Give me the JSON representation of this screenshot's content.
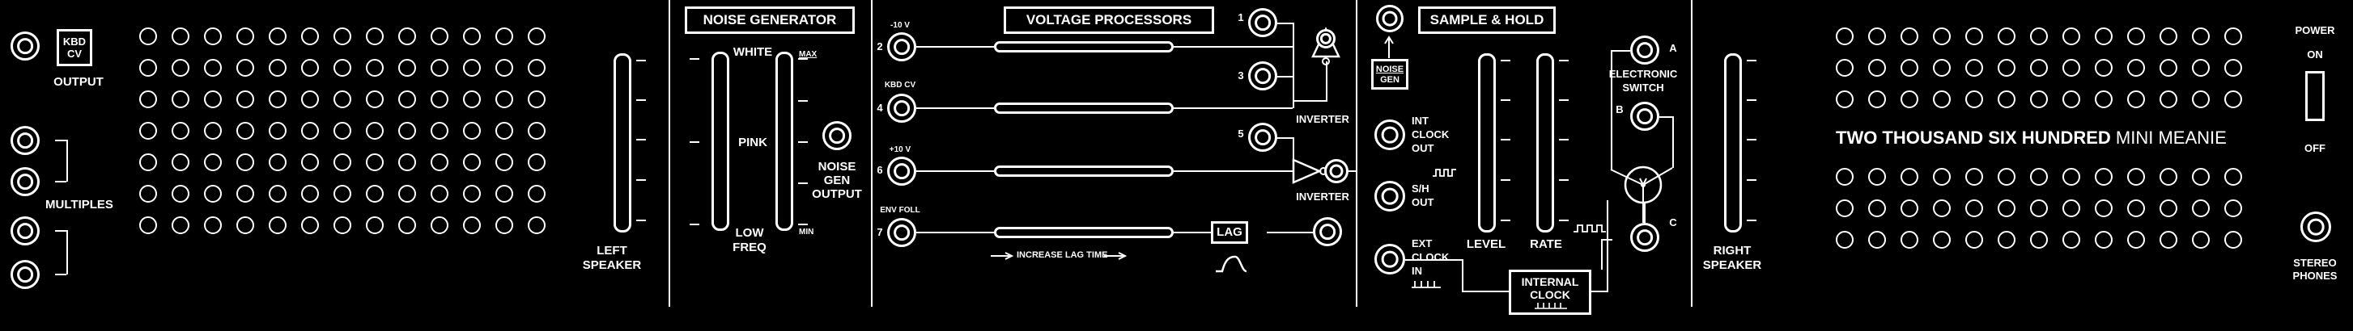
{
  "output": {
    "kbd_cv_box": "KBD CV",
    "label": "OUTPUT"
  },
  "multiples": {
    "label": "MULTIPLES"
  },
  "left_speaker": {
    "label_line1": "LEFT",
    "label_line2": "SPEAKER"
  },
  "noise_generator": {
    "title": "NOISE GENERATOR",
    "white": "WHITE",
    "pink": "PINK",
    "low": "LOW",
    "freq": "FREQ",
    "max": "MAX",
    "min": "MIN",
    "out_line1": "NOISE",
    "out_line2": "GEN",
    "out_line3": "OUTPUT"
  },
  "voltage_processors": {
    "title": "VOLTAGE PROCESSORS",
    "in2_top": "-10 V",
    "in2_num": "2",
    "in4_top": "KBD CV",
    "in4_num": "4",
    "in6_top": "+10 V",
    "in6_num": "6",
    "in7_top": "ENV FOLL",
    "in7_num": "7",
    "out1": "1",
    "out3": "3",
    "out5": "5",
    "inverter1": "INVERTER",
    "inverter2": "INVERTER",
    "lag": "LAG",
    "increase_lag": "INCREASE LAG TIME"
  },
  "sample_hold": {
    "title": "SAMPLE & HOLD",
    "noise_gen_box_l1": "NOISE",
    "noise_gen_box_l2": "GEN",
    "int_clock_l1": "INT",
    "int_clock_l2": "CLOCK",
    "int_clock_l3": "OUT",
    "sh_out_l1": "S/H",
    "sh_out_l2": "OUT",
    "ext_clock_l1": "EXT",
    "ext_clock_l2": "CLOCK",
    "ext_clock_l3": "IN",
    "level": "LEVEL",
    "rate": "RATE",
    "electronic_l1": "ELECTRONIC",
    "electronic_l2": "SWITCH",
    "switch_a": "A",
    "switch_b": "B",
    "switch_c": "C",
    "internal_clock_l1": "INTERNAL",
    "internal_clock_l2": "CLOCK"
  },
  "right_speaker": {
    "label_line1": "RIGHT",
    "label_line2": "SPEAKER"
  },
  "brand": {
    "bold": "TWO THOUSAND SIX HUNDRED",
    "light": "MINI MEANIE"
  },
  "power": {
    "title": "POWER",
    "on": "ON",
    "off": "OFF"
  },
  "phones": {
    "label_line1": "STEREO",
    "label_line2": "PHONES"
  }
}
